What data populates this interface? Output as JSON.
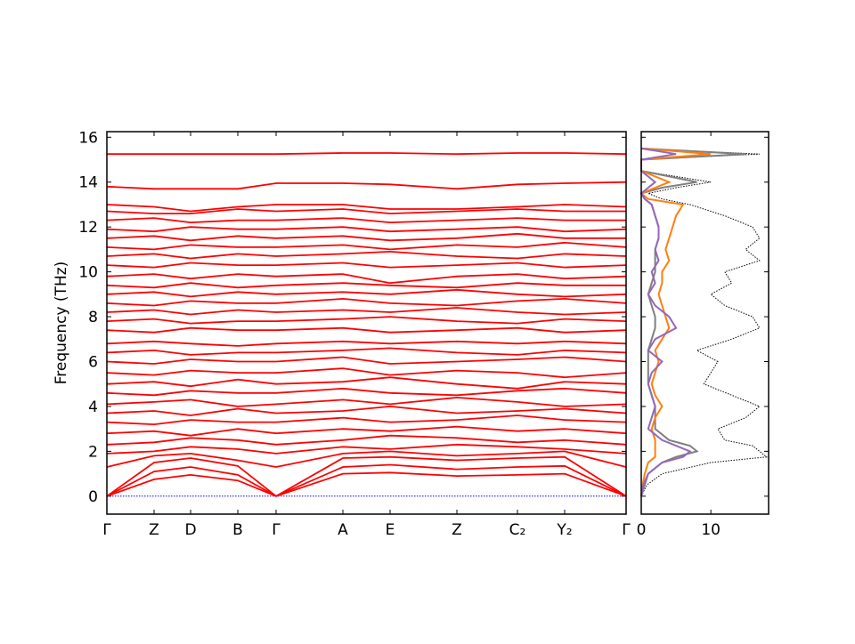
{
  "chart_data": [
    {
      "type": "bands",
      "ylabel": "Frequency (THz)",
      "x": [
        0,
        0.53,
        0.94,
        1.47,
        1.9,
        2.65,
        3.18,
        3.93,
        4.61,
        5.14,
        5.83
      ],
      "xlim": [
        0,
        5.83
      ],
      "xticks": [
        {
          "value": 0,
          "label": "Γ"
        },
        {
          "value": 0.53,
          "label": "Z"
        },
        {
          "value": 0.94,
          "label": "D"
        },
        {
          "value": 1.47,
          "label": "B"
        },
        {
          "value": 1.9,
          "label": "Γ"
        },
        {
          "value": 2.65,
          "label": "A"
        },
        {
          "value": 3.18,
          "label": "E"
        },
        {
          "value": 3.93,
          "label": "Z"
        },
        {
          "value": 4.61,
          "label": "C₂"
        },
        {
          "value": 5.14,
          "label": "Y₂"
        },
        {
          "value": 5.83,
          "label": "Γ"
        }
      ],
      "ylim": [
        -0.8,
        16.25
      ],
      "yticks": [
        0,
        2,
        4,
        6,
        8,
        10,
        12,
        14,
        16
      ],
      "series": [
        {
          "color": "#0000ff",
          "style": "dotted",
          "values": [
            0,
            0,
            0,
            0,
            0,
            0,
            0,
            0,
            0,
            0,
            0
          ]
        },
        {
          "color": "#ff0000",
          "values": [
            0,
            0.75,
            0.95,
            0.7,
            0,
            1.0,
            1.05,
            0.9,
            0.95,
            1.0,
            0
          ]
        },
        {
          "color": "#ff0000",
          "values": [
            0,
            1.1,
            1.3,
            0.95,
            0,
            1.3,
            1.4,
            1.2,
            1.3,
            1.35,
            0
          ]
        },
        {
          "color": "#ff0000",
          "values": [
            0,
            1.5,
            1.7,
            1.35,
            0,
            1.7,
            1.75,
            1.6,
            1.7,
            1.75,
            0
          ]
        },
        {
          "color": "#ff0000",
          "values": [
            1.3,
            1.8,
            1.9,
            1.6,
            1.3,
            1.9,
            2.0,
            1.8,
            1.9,
            2.0,
            1.3
          ]
        },
        {
          "color": "#ff0000",
          "values": [
            1.9,
            2.0,
            2.2,
            2.1,
            1.9,
            2.2,
            2.1,
            2.3,
            2.2,
            2.1,
            1.9
          ]
        },
        {
          "color": "#ff0000",
          "values": [
            2.3,
            2.4,
            2.6,
            2.5,
            2.3,
            2.5,
            2.7,
            2.6,
            2.4,
            2.5,
            2.3
          ]
        },
        {
          "color": "#ff0000",
          "values": [
            2.8,
            2.9,
            2.7,
            3.0,
            2.8,
            3.0,
            2.9,
            3.1,
            2.9,
            3.0,
            2.8
          ]
        },
        {
          "color": "#ff0000",
          "values": [
            3.3,
            3.2,
            3.4,
            3.3,
            3.3,
            3.5,
            3.3,
            3.4,
            3.6,
            3.4,
            3.3
          ]
        },
        {
          "color": "#ff0000",
          "values": [
            3.7,
            3.8,
            3.6,
            3.9,
            3.7,
            3.8,
            4.0,
            3.7,
            3.8,
            3.9,
            3.7
          ]
        },
        {
          "color": "#ff0000",
          "values": [
            4.1,
            4.2,
            4.3,
            4.0,
            4.1,
            4.3,
            4.1,
            4.4,
            4.2,
            4.0,
            4.1
          ]
        },
        {
          "color": "#ff0000",
          "values": [
            4.6,
            4.5,
            4.7,
            4.6,
            4.6,
            4.8,
            4.6,
            4.5,
            4.7,
            4.8,
            4.6
          ]
        },
        {
          "color": "#ff0000",
          "values": [
            5.0,
            5.1,
            4.9,
            5.2,
            5.0,
            5.1,
            5.3,
            5.0,
            4.8,
            5.1,
            5.0
          ]
        },
        {
          "color": "#ff0000",
          "values": [
            5.5,
            5.4,
            5.6,
            5.5,
            5.5,
            5.7,
            5.4,
            5.6,
            5.5,
            5.3,
            5.5
          ]
        },
        {
          "color": "#ff0000",
          "values": [
            6.0,
            5.9,
            6.1,
            6.0,
            6.0,
            6.2,
            5.9,
            6.0,
            6.1,
            6.2,
            6.0
          ]
        },
        {
          "color": "#ff0000",
          "values": [
            6.4,
            6.5,
            6.3,
            6.4,
            6.4,
            6.5,
            6.6,
            6.4,
            6.3,
            6.5,
            6.4
          ]
        },
        {
          "color": "#ff0000",
          "values": [
            6.8,
            6.9,
            6.8,
            6.7,
            6.8,
            6.9,
            6.8,
            6.9,
            6.8,
            6.9,
            6.8
          ]
        },
        {
          "color": "#ff0000",
          "values": [
            7.4,
            7.3,
            7.5,
            7.4,
            7.4,
            7.5,
            7.3,
            7.4,
            7.5,
            7.3,
            7.4
          ]
        },
        {
          "color": "#ff0000",
          "values": [
            7.8,
            7.9,
            7.7,
            7.8,
            7.8,
            7.9,
            8.0,
            7.8,
            7.7,
            7.9,
            7.8
          ]
        },
        {
          "color": "#ff0000",
          "values": [
            8.2,
            8.3,
            8.1,
            8.3,
            8.2,
            8.3,
            8.2,
            8.4,
            8.2,
            8.1,
            8.2
          ]
        },
        {
          "color": "#ff0000",
          "values": [
            8.6,
            8.5,
            8.7,
            8.6,
            8.6,
            8.8,
            8.6,
            8.5,
            8.7,
            8.8,
            8.6
          ]
        },
        {
          "color": "#ff0000",
          "values": [
            9.0,
            9.1,
            8.9,
            9.1,
            9.0,
            9.1,
            9.0,
            9.2,
            9.0,
            8.9,
            9.0
          ]
        },
        {
          "color": "#ff0000",
          "values": [
            9.4,
            9.3,
            9.5,
            9.3,
            9.4,
            9.5,
            9.4,
            9.3,
            9.5,
            9.4,
            9.4
          ]
        },
        {
          "color": "#ff0000",
          "values": [
            9.8,
            9.9,
            9.7,
            9.9,
            9.8,
            9.9,
            9.5,
            9.8,
            9.9,
            9.7,
            9.8
          ]
        },
        {
          "color": "#ff0000",
          "values": [
            10.3,
            10.2,
            10.4,
            10.3,
            10.3,
            10.4,
            10.2,
            10.3,
            10.4,
            10.2,
            10.3
          ]
        },
        {
          "color": "#ff0000",
          "values": [
            10.7,
            10.8,
            10.6,
            10.8,
            10.7,
            10.8,
            10.9,
            10.7,
            10.6,
            10.8,
            10.7
          ]
        },
        {
          "color": "#ff0000",
          "values": [
            11.1,
            11.0,
            11.2,
            11.1,
            11.1,
            11.2,
            11.0,
            11.2,
            11.1,
            11.3,
            11.1
          ]
        },
        {
          "color": "#ff0000",
          "values": [
            11.5,
            11.6,
            11.4,
            11.6,
            11.5,
            11.6,
            11.4,
            11.5,
            11.7,
            11.5,
            11.5
          ]
        },
        {
          "color": "#ff0000",
          "values": [
            11.9,
            11.8,
            12.0,
            11.9,
            11.9,
            12.0,
            11.8,
            11.9,
            12.0,
            11.8,
            11.9
          ]
        },
        {
          "color": "#ff0000",
          "values": [
            12.3,
            12.4,
            12.2,
            12.3,
            12.3,
            12.4,
            12.2,
            12.3,
            12.4,
            12.3,
            12.3
          ]
        },
        {
          "color": "#ff0000",
          "values": [
            12.7,
            12.6,
            12.6,
            12.8,
            12.7,
            12.8,
            12.6,
            12.7,
            12.8,
            12.7,
            12.7
          ]
        },
        {
          "color": "#ff0000",
          "values": [
            13.0,
            12.9,
            12.7,
            12.9,
            13.0,
            13.0,
            12.8,
            12.8,
            12.9,
            13.0,
            12.9
          ]
        },
        {
          "color": "#ff0000",
          "values": [
            13.8,
            13.7,
            13.7,
            13.7,
            13.95,
            13.95,
            13.9,
            13.7,
            13.9,
            13.95,
            14.0
          ]
        },
        {
          "color": "#ff0000",
          "values": [
            15.25,
            15.25,
            15.25,
            15.25,
            15.25,
            15.3,
            15.3,
            15.25,
            15.3,
            15.3,
            15.25
          ]
        }
      ]
    },
    {
      "type": "dos",
      "frequencies": [
        0,
        0.5,
        1,
        1.5,
        1.75,
        2,
        2.25,
        2.5,
        3,
        3.5,
        4,
        4.5,
        5,
        5.5,
        6,
        6.5,
        7,
        7.5,
        8,
        8.5,
        9,
        9.5,
        10,
        10.5,
        11,
        11.5,
        12,
        12.5,
        13,
        13.25,
        13.5,
        13.75,
        14,
        14.5,
        15,
        15.25,
        15.5
      ],
      "xlim": [
        0,
        18.3
      ],
      "xticks": [
        0,
        10
      ],
      "series": [
        {
          "color": "#000000",
          "style": "dotted",
          "values": [
            0,
            0.8,
            3,
            10,
            18,
            17,
            16,
            12,
            11,
            15,
            17,
            13,
            9,
            10,
            11,
            8,
            13,
            17,
            16,
            12,
            10,
            13,
            12,
            17,
            15,
            17,
            16,
            12,
            7,
            3,
            1,
            5,
            10,
            0,
            0,
            17,
            0
          ]
        },
        {
          "color": "#7f7f7f",
          "values": [
            0,
            0.5,
            1,
            3,
            5,
            8,
            7,
            4,
            2,
            2,
            2,
            1.5,
            1,
            1,
            1,
            1,
            1.5,
            2,
            2,
            1.5,
            1,
            1.5,
            2,
            2,
            2,
            2.5,
            2.5,
            2,
            1.5,
            0.5,
            0,
            3,
            8,
            0,
            0,
            15,
            0
          ]
        },
        {
          "color": "#ff7f0e",
          "values": [
            0,
            0.2,
            0.5,
            1,
            2,
            2,
            2,
            2,
            1.5,
            2,
            3,
            2,
            1.5,
            2,
            2.5,
            2,
            3,
            4,
            3.5,
            3,
            2.5,
            3,
            3,
            4,
            3.5,
            4,
            4.5,
            5,
            6,
            1,
            0,
            2,
            4,
            0,
            0,
            10,
            0
          ]
        },
        {
          "color": "#9467bd",
          "values": [
            0,
            0.3,
            1,
            3,
            6,
            7,
            5,
            3,
            1,
            1.5,
            2,
            1.5,
            1,
            1.5,
            3,
            1,
            2,
            5,
            4,
            2,
            1,
            2,
            1.5,
            2.5,
            2,
            2.5,
            2.5,
            2,
            1.5,
            0.5,
            0,
            1,
            2,
            0,
            0,
            5,
            0
          ]
        }
      ]
    }
  ]
}
